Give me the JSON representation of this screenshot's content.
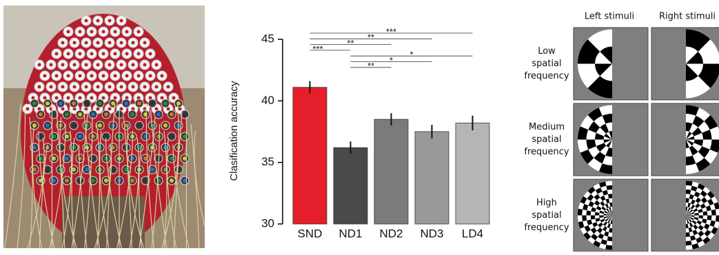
{
  "chart_data": {
    "type": "bar",
    "y_label": "Clasification accuracy",
    "categories": [
      "SND",
      "ND1",
      "ND2",
      "ND3",
      "LD4"
    ],
    "values": [
      41.1,
      36.2,
      38.5,
      37.5,
      38.2
    ],
    "errors": [
      0.5,
      0.5,
      0.5,
      0.55,
      0.6
    ],
    "colors": [
      "#e41e2b",
      "#4a4a4a",
      "#7b7b7b",
      "#999999",
      "#b5b5b5"
    ],
    "ylim": [
      30,
      45
    ],
    "yticks": [
      30,
      35,
      40,
      45
    ],
    "annotations": [
      {
        "label": "***",
        "from": 0,
        "to": 4
      },
      {
        "label": "**",
        "from": 0,
        "to": 3
      },
      {
        "label": "**",
        "from": 0,
        "to": 2
      },
      {
        "label": "***",
        "from": 0,
        "to": 1
      },
      {
        "label": "*",
        "from": 1,
        "to": 4
      },
      {
        "label": "*",
        "from": 1,
        "to": 3
      },
      {
        "label": "**",
        "from": 1,
        "to": 2
      }
    ]
  },
  "stimuli": {
    "columns": [
      "Left stimuli",
      "Right stimuli"
    ],
    "rows": [
      [
        "Low",
        "spatial",
        "frequency"
      ],
      [
        "Medium",
        "spatial",
        "frequency"
      ],
      [
        "High",
        "spatial",
        "frequency"
      ]
    ]
  }
}
